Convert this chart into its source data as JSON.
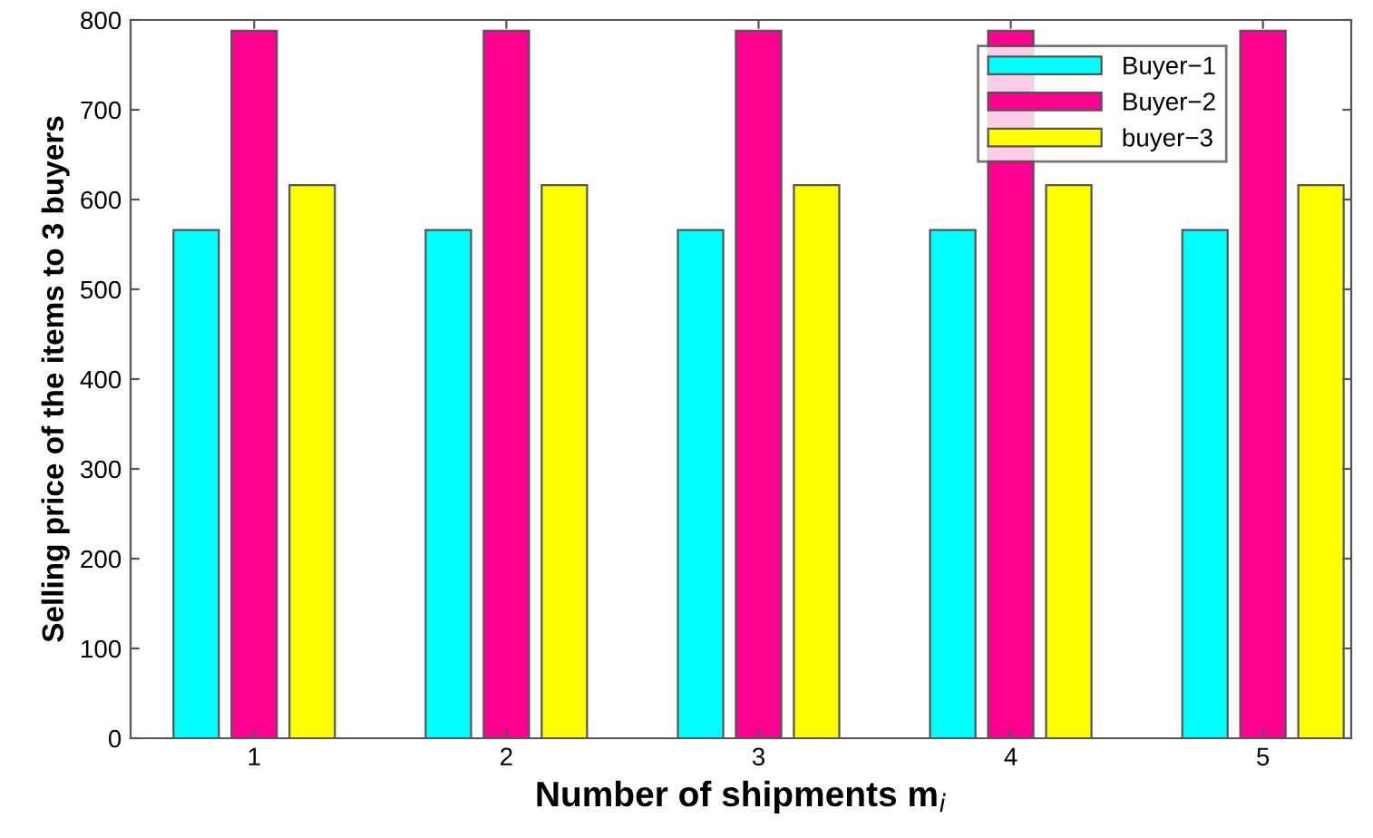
{
  "chart_data": {
    "type": "bar",
    "xlabel": "Number of shipments m$_{i}$",
    "ylabel": "Selling price of the items to 3 buyers",
    "categories": [
      "1",
      "2",
      "3",
      "4",
      "5"
    ],
    "series": [
      {
        "name": "Buyer−1",
        "color": "#00ffff",
        "values": [
          566,
          566,
          566,
          566,
          566
        ]
      },
      {
        "name": "Buyer−2",
        "color": "#ff0090",
        "values": [
          788,
          788,
          788,
          788,
          788
        ]
      },
      {
        "name": "buyer−3",
        "color": "#ffff00",
        "values": [
          616,
          616,
          616,
          616,
          616
        ]
      }
    ],
    "ylim": [
      0,
      800
    ],
    "yticks": [
      0,
      100,
      200,
      300,
      400,
      500,
      600,
      700,
      800
    ],
    "grid": false,
    "legend": "top right"
  }
}
